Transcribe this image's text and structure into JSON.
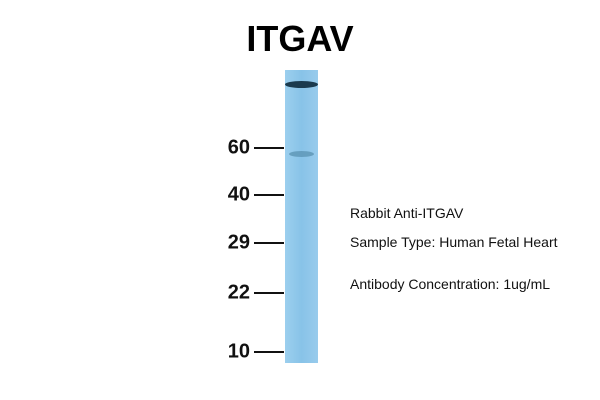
{
  "title": "ITGAV",
  "markers": [
    "60",
    "40",
    "29",
    "22",
    "10"
  ],
  "annotations": [
    "Rabbit Anti-ITGAV",
    "Sample Type: Human Fetal Heart",
    "Antibody Concentration: 1ug/mL"
  ]
}
